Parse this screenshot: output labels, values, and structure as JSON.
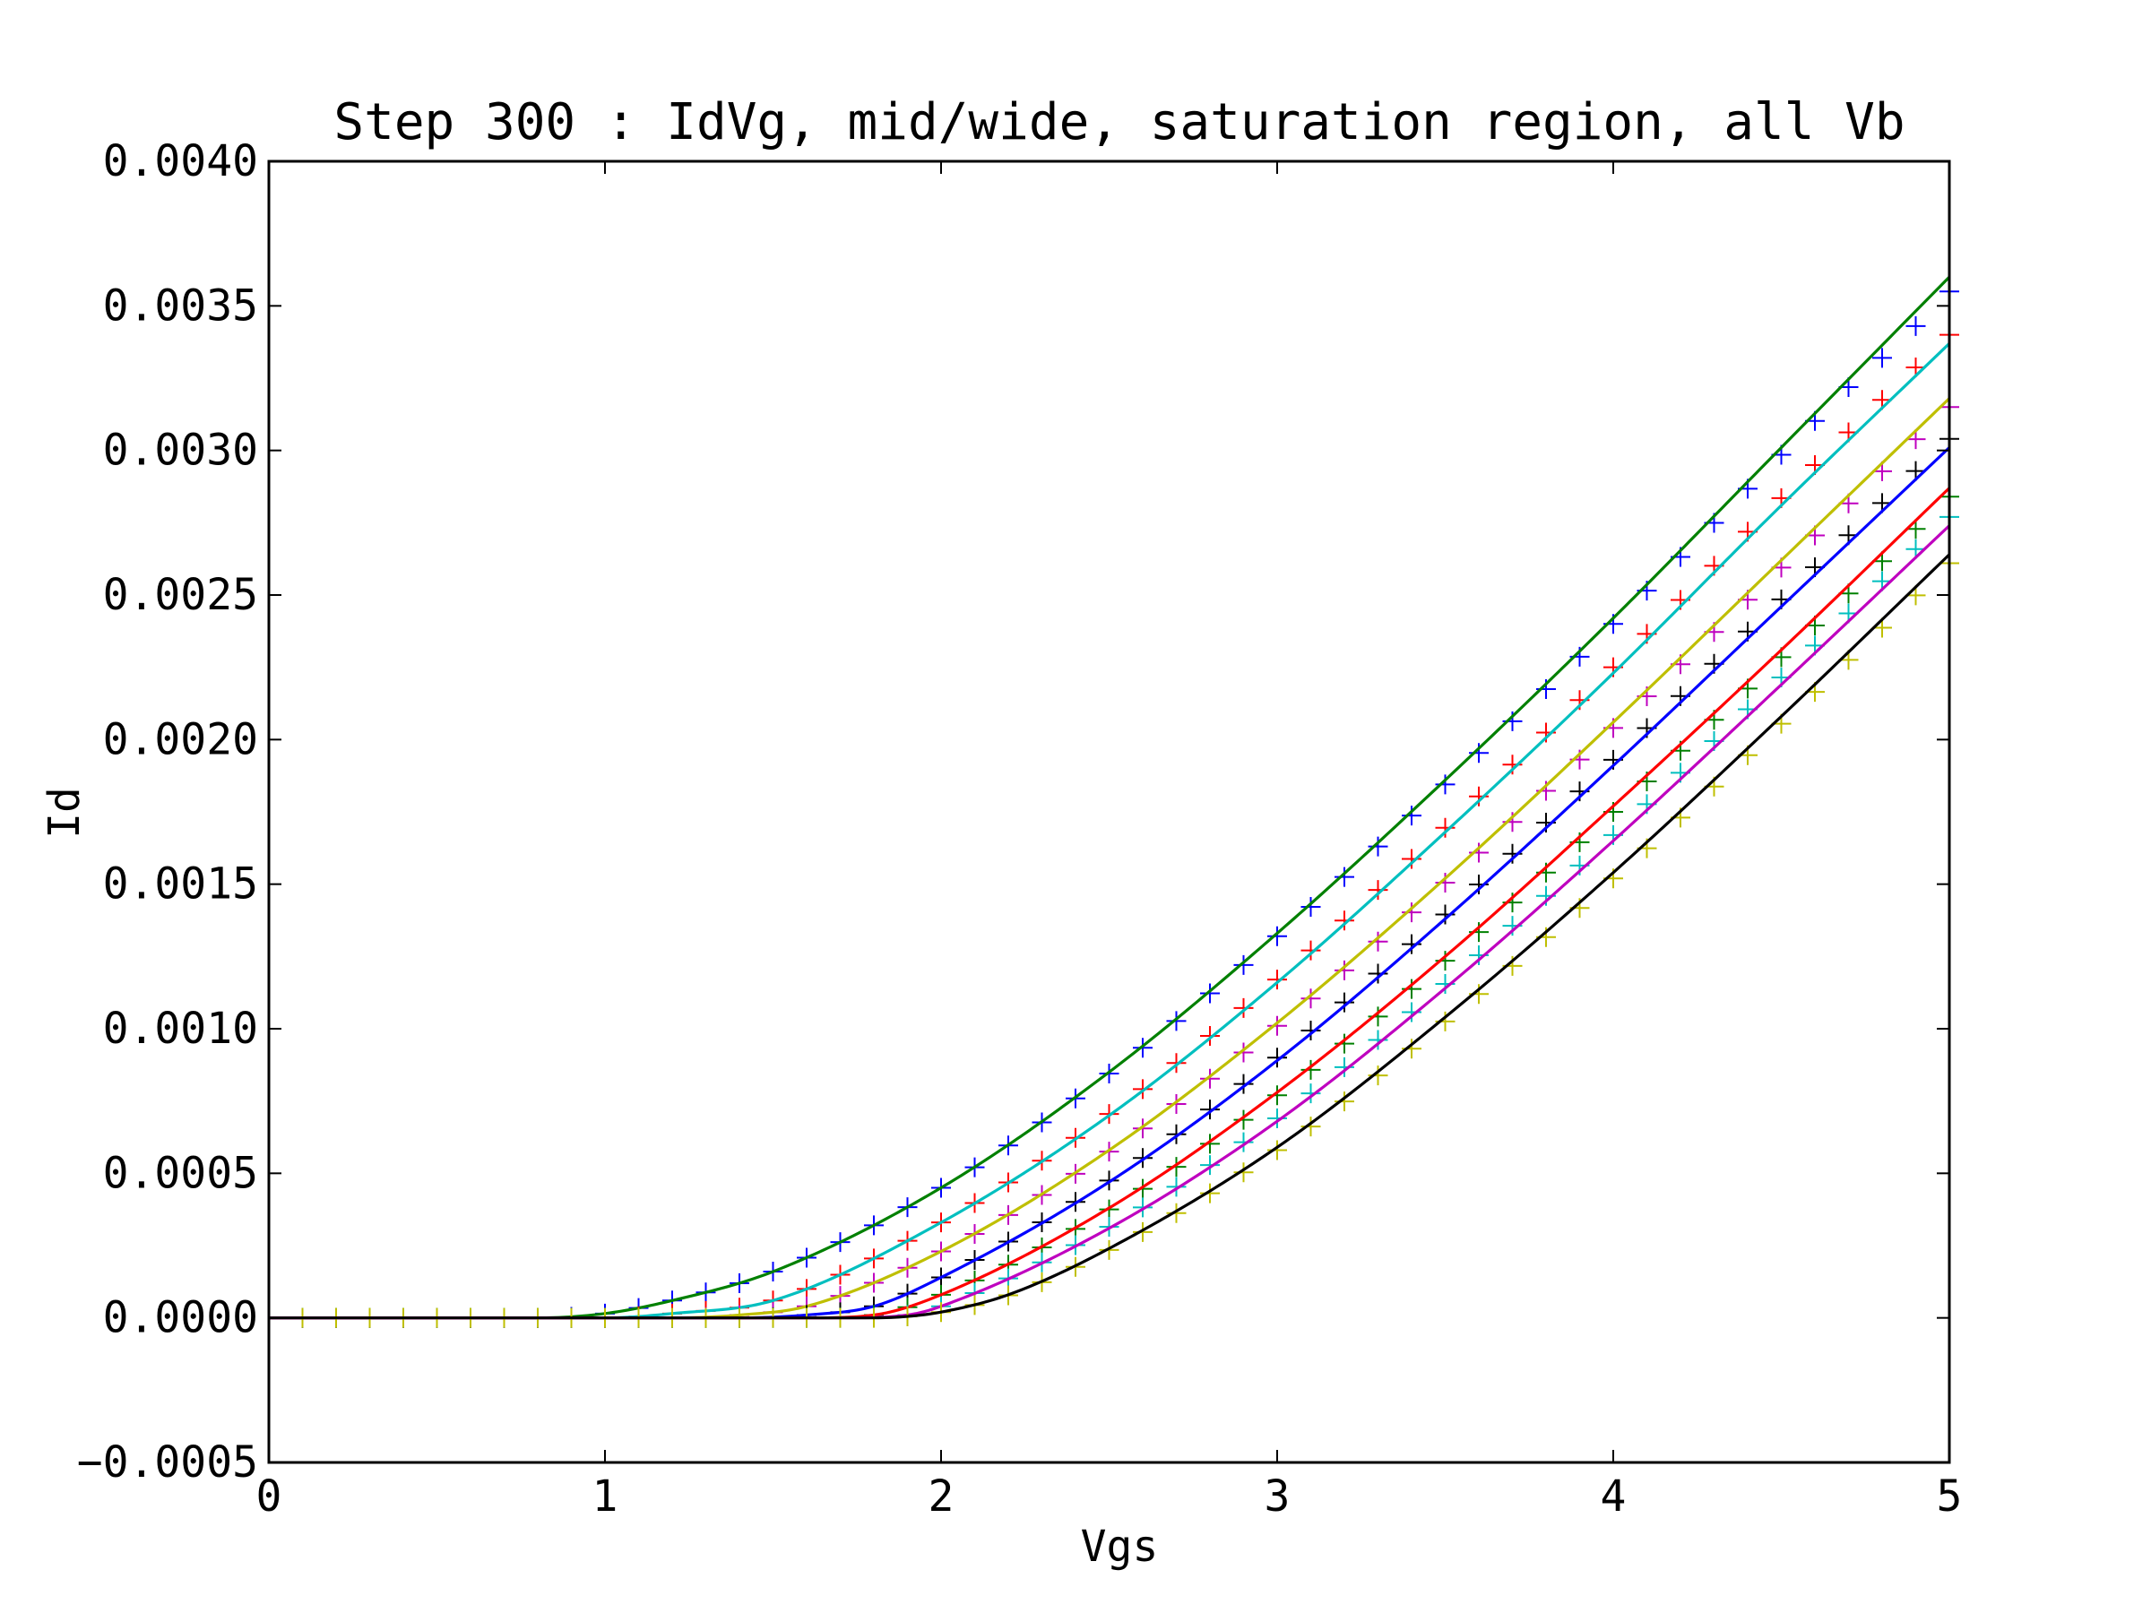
{
  "chart_data": {
    "type": "line",
    "title": "Step 300 : IdVg, mid/wide, saturation region, all Vb",
    "xlabel": "Vgs",
    "ylabel": "Id",
    "xlim": [
      0,
      5
    ],
    "ylim": [
      -0.0005,
      0.004
    ],
    "xticks": [
      0,
      1,
      2,
      3,
      4,
      5
    ],
    "xtick_labels": [
      "0",
      "1",
      "2",
      "3",
      "4",
      "5"
    ],
    "yticks": [
      -0.0005,
      0,
      0.0005,
      0.001,
      0.0015,
      0.002,
      0.0025,
      0.003,
      0.0035,
      0.004
    ],
    "ytick_labels": [
      "−0.0005",
      "0.0000",
      "0.0005",
      "0.0010",
      "0.0015",
      "0.0020",
      "0.0025",
      "0.0030",
      "0.0035",
      "0.0040"
    ],
    "grid": false,
    "legend": "none",
    "marker_x": [
      0.1,
      0.2,
      0.3,
      0.4,
      0.5,
      0.6,
      0.7,
      0.8,
      0.9,
      1.0,
      1.1,
      1.2,
      1.3,
      1.4,
      1.5,
      1.6,
      1.7,
      1.8,
      1.9,
      2.0,
      2.1,
      2.2,
      2.3,
      2.4,
      2.5,
      2.6,
      2.7,
      2.8,
      2.9,
      3.0,
      3.1,
      3.2,
      3.3,
      3.4,
      3.5,
      3.6,
      3.7,
      3.8,
      3.9,
      4.0,
      4.1,
      4.2,
      4.3,
      4.4,
      4.5,
      4.6,
      4.7,
      4.8,
      4.9,
      5.0
    ],
    "series": [
      {
        "line_color": "#008000",
        "marker_color": "#0000ff",
        "samples": [
          [
            0.0,
            0.0
          ],
          [
            0.8,
            0.0
          ],
          [
            1.0,
            1.5e-05
          ],
          [
            1.2,
            6e-05
          ],
          [
            1.5,
            0.00016
          ],
          [
            2.0,
            0.00045
          ],
          [
            2.5,
            0.00085
          ],
          [
            3.0,
            0.00133
          ],
          [
            3.5,
            0.00186
          ],
          [
            4.0,
            0.00242
          ],
          [
            4.5,
            0.00301
          ],
          [
            5.0,
            0.0036
          ]
        ],
        "markers_end": [
          4.8,
          0.00332,
          4.9,
          0.00343,
          5.0,
          0.00355
        ]
      },
      {
        "line_color": "#00bfbf",
        "marker_color": "#ff0000",
        "samples": [
          [
            0.0,
            0.0
          ],
          [
            1.0,
            0.0
          ],
          [
            1.2,
            1.5e-05
          ],
          [
            1.5,
            6e-05
          ],
          [
            2.0,
            0.00033
          ],
          [
            2.5,
            0.0007
          ],
          [
            3.0,
            0.00116
          ],
          [
            3.5,
            0.00168
          ],
          [
            4.0,
            0.00223
          ],
          [
            4.5,
            0.00281
          ],
          [
            5.0,
            0.00337
          ]
        ]
      },
      {
        "line_color": "#bfbf00",
        "marker_color": "#bf00bf",
        "samples": [
          [
            0.0,
            0.0
          ],
          [
            1.2,
            0.0
          ],
          [
            1.4,
            1e-05
          ],
          [
            1.6,
            4e-05
          ],
          [
            2.0,
            0.00023
          ],
          [
            2.5,
            0.00058
          ],
          [
            3.0,
            0.00102
          ],
          [
            3.5,
            0.00152
          ],
          [
            4.0,
            0.00206
          ],
          [
            4.5,
            0.00262
          ],
          [
            5.0,
            0.00318
          ]
        ]
      },
      {
        "line_color": "#0000ff",
        "marker_color": "#000000",
        "samples": [
          [
            0.0,
            0.0
          ],
          [
            1.4,
            0.0
          ],
          [
            1.6,
            1e-05
          ],
          [
            1.8,
            4e-05
          ],
          [
            2.0,
            0.00014
          ],
          [
            2.5,
            0.00047
          ],
          [
            3.0,
            0.00089
          ],
          [
            3.5,
            0.00138
          ],
          [
            4.0,
            0.00191
          ],
          [
            4.5,
            0.00246
          ],
          [
            5.0,
            0.00301
          ]
        ]
      },
      {
        "line_color": "#ff0000",
        "marker_color": "#008000",
        "samples": [
          [
            0.0,
            0.0
          ],
          [
            1.6,
            0.0
          ],
          [
            1.8,
            1e-05
          ],
          [
            2.0,
            8e-05
          ],
          [
            2.5,
            0.00038
          ],
          [
            3.0,
            0.00078
          ],
          [
            3.5,
            0.00125
          ],
          [
            4.0,
            0.00177
          ],
          [
            4.5,
            0.00231
          ],
          [
            5.0,
            0.00287
          ]
        ]
      },
      {
        "line_color": "#bf00bf",
        "marker_color": "#00bfbf",
        "samples": [
          [
            0.0,
            0.0
          ],
          [
            1.7,
            0.0
          ],
          [
            1.9,
            1e-05
          ],
          [
            2.0,
            4e-05
          ],
          [
            2.5,
            0.00031
          ],
          [
            3.0,
            0.00068
          ],
          [
            3.5,
            0.00114
          ],
          [
            4.0,
            0.00165
          ],
          [
            4.5,
            0.00219
          ],
          [
            5.0,
            0.00274
          ]
        ]
      },
      {
        "line_color": "#000000",
        "marker_color": "#bfbf00",
        "samples": [
          [
            0.0,
            0.0
          ],
          [
            1.8,
            0.0
          ],
          [
            1.9,
            5e-06
          ],
          [
            2.0,
            2e-05
          ],
          [
            2.2,
            8e-05
          ],
          [
            2.5,
            0.00024
          ],
          [
            3.0,
            0.00059
          ],
          [
            3.5,
            0.00104
          ],
          [
            4.0,
            0.00154
          ],
          [
            4.5,
            0.00208
          ],
          [
            5.0,
            0.00264
          ]
        ]
      }
    ]
  }
}
